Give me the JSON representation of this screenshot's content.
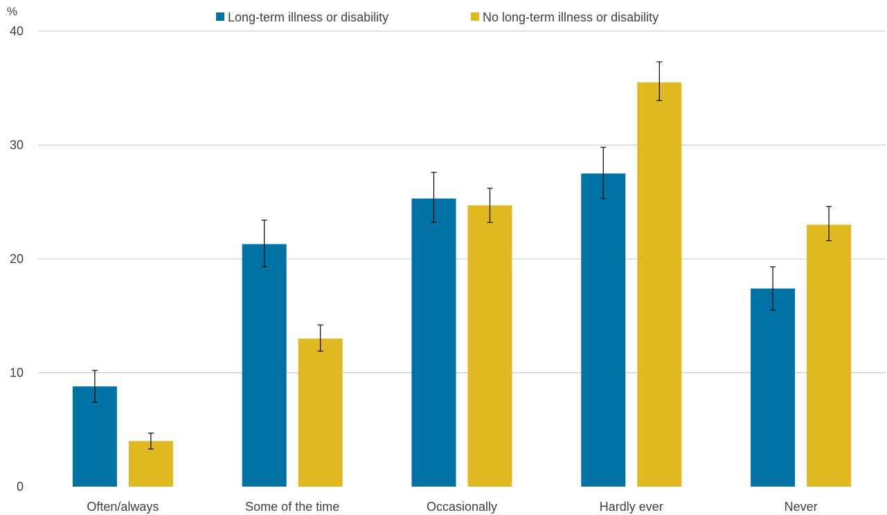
{
  "chart_data": {
    "type": "bar",
    "title": "",
    "xlabel": "",
    "ylabel": "%",
    "ylim": [
      0,
      40
    ],
    "yticks": [
      0,
      10,
      20,
      30,
      40
    ],
    "grid": true,
    "legend_position": "top-center",
    "categories": [
      "Often/always",
      "Some of the time",
      "Occasionally",
      "Hardly ever",
      "Never"
    ],
    "series": [
      {
        "name": "Long-term illness or disability",
        "color": "#0072a3",
        "values": [
          8.8,
          21.3,
          25.3,
          27.5,
          17.4
        ],
        "err_low": [
          7.4,
          19.3,
          23.2,
          25.3,
          15.5
        ],
        "err_high": [
          10.2,
          23.4,
          27.6,
          29.8,
          19.3
        ]
      },
      {
        "name": "No long-term illness or disability",
        "color": "#e0b820",
        "values": [
          4.0,
          13.0,
          24.7,
          35.5,
          23.0
        ],
        "err_low": [
          3.3,
          11.9,
          23.2,
          33.9,
          21.6
        ],
        "err_high": [
          4.7,
          14.2,
          26.2,
          37.3,
          24.6
        ]
      }
    ]
  }
}
